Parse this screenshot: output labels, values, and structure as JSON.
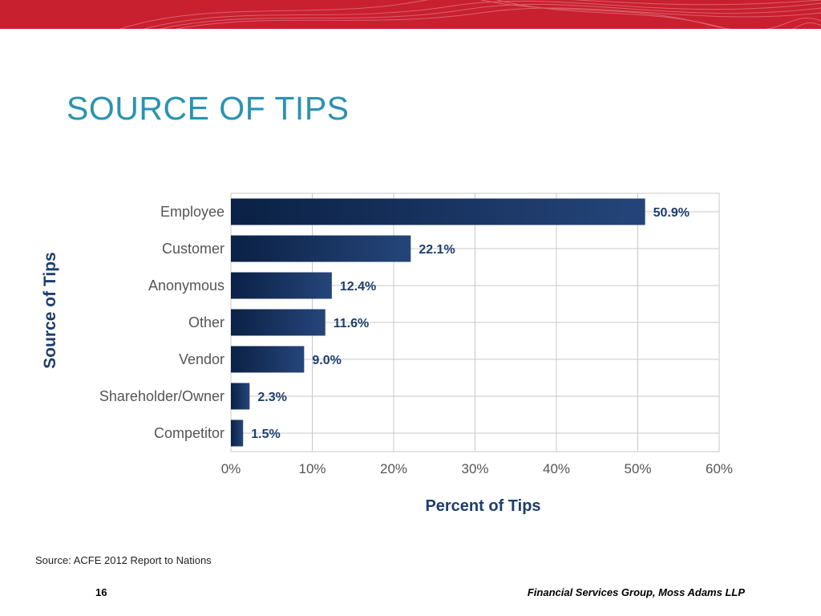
{
  "slide": {
    "title": "SOURCE OF TIPS",
    "source_note": "Source: ACFE 2012 Report to Nations",
    "page_number": "16",
    "footer": "Financial Services Group, Moss Adams LLP"
  },
  "colors": {
    "banner_red": "#c8202f",
    "title_blue": "#2b93b0",
    "bar_dark": "#0b2145",
    "bar_light": "#25457a",
    "label_blue": "#1d3d6e",
    "grid": "#c8c8c8"
  },
  "chart_data": {
    "type": "bar",
    "orientation": "horizontal",
    "title": "",
    "xlabel": "Percent of Tips",
    "ylabel": "Source of Tips",
    "categories": [
      "Employee",
      "Customer",
      "Anonymous",
      "Other",
      "Vendor",
      "Shareholder/Owner",
      "Competitor"
    ],
    "values": [
      50.9,
      22.1,
      12.4,
      11.6,
      9.0,
      2.3,
      1.5
    ],
    "value_labels": [
      "50.9%",
      "22.1%",
      "12.4%",
      "11.6%",
      "9.0%",
      "2.3%",
      "1.5%"
    ],
    "xlim": [
      0,
      60
    ],
    "xticks": [
      0,
      10,
      20,
      30,
      40,
      50,
      60
    ],
    "xtick_labels": [
      "0%",
      "10%",
      "20%",
      "30%",
      "40%",
      "50%",
      "60%"
    ],
    "grid": true,
    "legend": "none"
  }
}
